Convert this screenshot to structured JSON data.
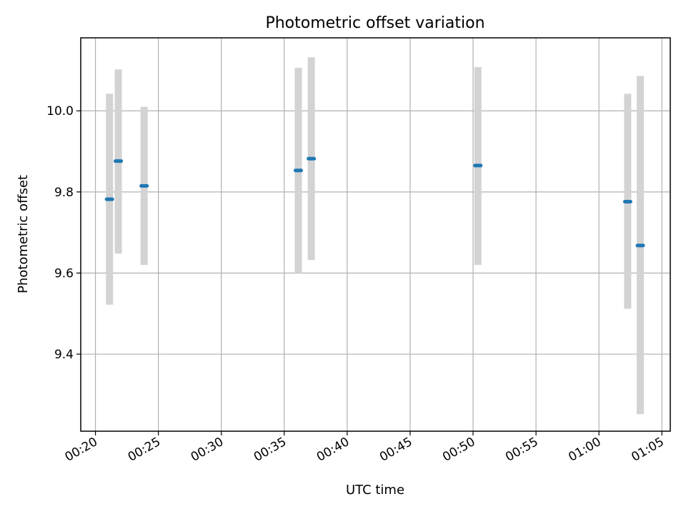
{
  "chart_data": {
    "type": "scatter",
    "title": "Photometric offset variation",
    "xlabel": "UTC time",
    "ylabel": "Photometric offset",
    "xlim": [
      "00:18:50",
      "01:05:40"
    ],
    "ylim": [
      9.21,
      10.18
    ],
    "xticks": [
      "00:20",
      "00:25",
      "00:30",
      "00:35",
      "00:40",
      "00:45",
      "00:50",
      "00:55",
      "01:00",
      "01:05"
    ],
    "yticks": [
      9.4,
      9.6,
      9.8,
      10.0
    ],
    "ytick_labels": [
      "9.4",
      "9.6",
      "9.8",
      "10.0"
    ],
    "grid": true,
    "colors": {
      "marker": "#1f77b4",
      "errorbar": "#d3d3d3"
    },
    "points": [
      {
        "time": "00:21:07",
        "value": 9.782,
        "low": 9.522,
        "high": 10.042
      },
      {
        "time": "00:21:49",
        "value": 9.876,
        "low": 9.648,
        "high": 10.102
      },
      {
        "time": "00:23:52",
        "value": 9.815,
        "low": 9.62,
        "high": 10.01
      },
      {
        "time": "00:36:07",
        "value": 9.853,
        "low": 9.6,
        "high": 10.106
      },
      {
        "time": "00:37:09",
        "value": 9.882,
        "low": 9.632,
        "high": 10.132
      },
      {
        "time": "00:50:23",
        "value": 9.865,
        "low": 9.62,
        "high": 10.108
      },
      {
        "time": "01:02:17",
        "value": 9.776,
        "low": 9.512,
        "high": 10.042
      },
      {
        "time": "01:03:17",
        "value": 9.668,
        "low": 9.252,
        "high": 10.086
      }
    ]
  }
}
